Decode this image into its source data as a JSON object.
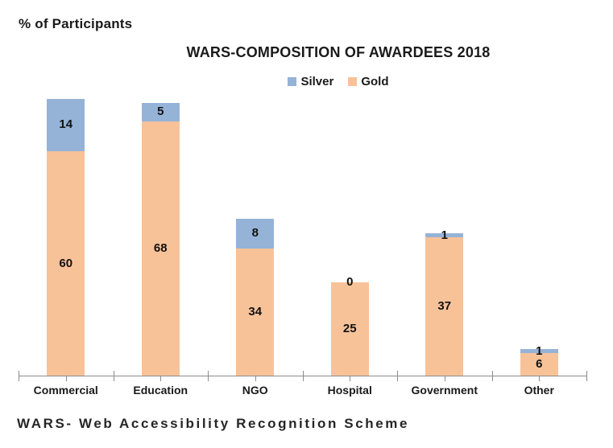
{
  "page": {
    "caption": "WARS- Web Accessibility Recognition Scheme"
  },
  "chart_data": {
    "type": "bar",
    "stacked": true,
    "title": "WARS-COMPOSITION OF AWARDEES 2018",
    "ylabel": "% of Participants",
    "xlabel": "",
    "categories": [
      "Commercial",
      "Education",
      "NGO",
      "Hospital",
      "Government",
      "Other"
    ],
    "series": [
      {
        "name": "Silver",
        "color": "#95B3D7",
        "values": [
          14,
          5,
          8,
          0,
          1,
          1
        ]
      },
      {
        "name": "Gold",
        "color": "#F8C299",
        "values": [
          60,
          68,
          34,
          25,
          37,
          6
        ]
      }
    ],
    "stack_bottom_to_top": [
      "Gold",
      "Silver"
    ],
    "totals": [
      74,
      73,
      42,
      25,
      38,
      7
    ],
    "value_labels": "shown centered on each segment",
    "ylim": [
      0,
      80
    ],
    "y_axis_ticks_visible": false,
    "grid": false,
    "legend_position": "top-center",
    "axis_color": "#8C8C8C",
    "label_color": "#111111"
  }
}
